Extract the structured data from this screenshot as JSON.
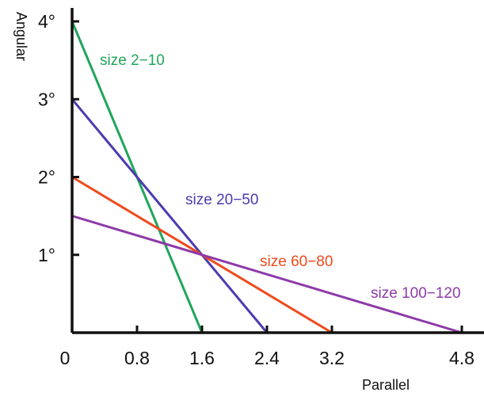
{
  "chart_data": {
    "type": "line",
    "xlabel": "Parallel",
    "ylabel": "Angular",
    "xlim": [
      0,
      4.8
    ],
    "ylim": [
      0,
      4
    ],
    "x_ticks": [
      {
        "value": 0,
        "label": "0"
      },
      {
        "value": 0.8,
        "label": "0.8"
      },
      {
        "value": 1.6,
        "label": "1.6"
      },
      {
        "value": 2.4,
        "label": "2.4"
      },
      {
        "value": 3.2,
        "label": "3.2"
      },
      {
        "value": 4.8,
        "label": "4.8"
      }
    ],
    "y_ticks": [
      {
        "value": 1,
        "label": "1°"
      },
      {
        "value": 2,
        "label": "2°"
      },
      {
        "value": 3,
        "label": "3°"
      },
      {
        "value": 4,
        "label": "4°"
      }
    ],
    "grid": false,
    "series": [
      {
        "name": "size 2−10",
        "color": "#1fa65a",
        "x": [
          0,
          1.6
        ],
        "y": [
          4,
          0
        ]
      },
      {
        "name": "size 20−50",
        "color": "#4b3bb0",
        "x": [
          0,
          2.4
        ],
        "y": [
          3,
          0
        ]
      },
      {
        "name": "size 60−80",
        "color": "#ee4a1c",
        "x": [
          0,
          3.2
        ],
        "y": [
          2,
          0
        ]
      },
      {
        "name": "size 100−120",
        "color": "#8e3aa8",
        "x": [
          0,
          4.8
        ],
        "y": [
          1.5,
          0
        ]
      }
    ]
  }
}
